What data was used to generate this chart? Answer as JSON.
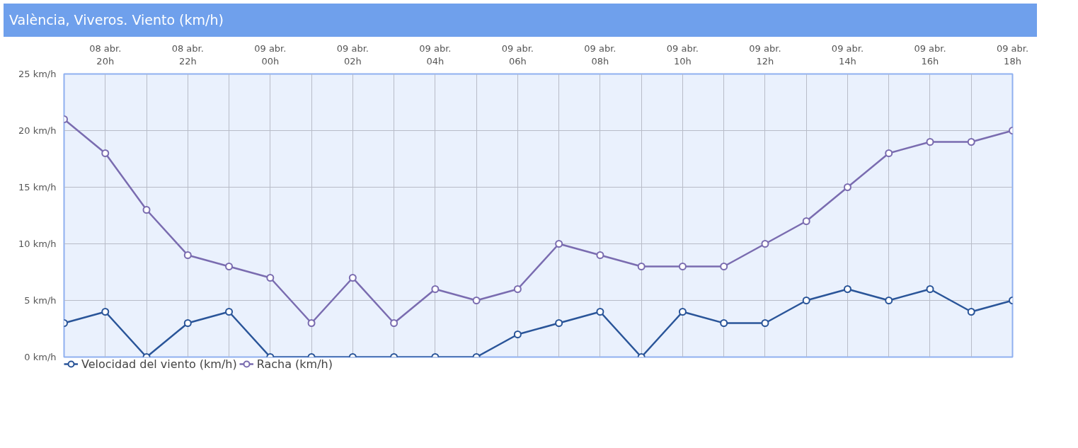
{
  "chart_data": {
    "type": "line",
    "title": "València, Viveros. Viento (km/h)",
    "categories": [
      null,
      "08 abr.\n20h",
      null,
      "08 abr.\n22h",
      null,
      "09 abr.\n00h",
      null,
      "09 abr.\n02h",
      null,
      "09 abr.\n04h",
      null,
      "09 abr.\n06h",
      null,
      "09 abr.\n08h",
      null,
      "09 abr.\n10h",
      null,
      "09 abr.\n12h",
      null,
      "09 abr.\n14h",
      null,
      "09 abr.\n16h",
      null,
      "09 abr.\n18h"
    ],
    "series": [
      {
        "name": "Velocidad del viento (km/h)",
        "color": "#2a5599",
        "values": [
          3,
          4,
          0,
          3,
          4,
          0,
          0,
          0,
          0,
          0,
          0,
          2,
          3,
          4,
          0,
          4,
          3,
          3,
          5,
          6,
          5,
          6,
          4,
          5
        ]
      },
      {
        "name": "Racha (km/h)",
        "color": "#7a6cb0",
        "values": [
          21,
          18,
          13,
          9,
          8,
          7,
          3,
          7,
          3,
          6,
          5,
          6,
          10,
          9,
          8,
          8,
          8,
          10,
          12,
          15,
          18,
          19,
          19,
          20
        ]
      }
    ],
    "ylim": [
      0,
      25
    ],
    "yticks": [
      {
        "value": 0,
        "label": "0 km/h"
      },
      {
        "value": 5,
        "label": "5 km/h"
      },
      {
        "value": 10,
        "label": "10 km/h"
      },
      {
        "value": 15,
        "label": "15 km/h"
      },
      {
        "value": 20,
        "label": "20 km/h"
      },
      {
        "value": 25,
        "label": "25 km/h"
      }
    ],
    "grid": true,
    "legend": "bottom left",
    "marker": "circle",
    "line_style": "solid"
  }
}
